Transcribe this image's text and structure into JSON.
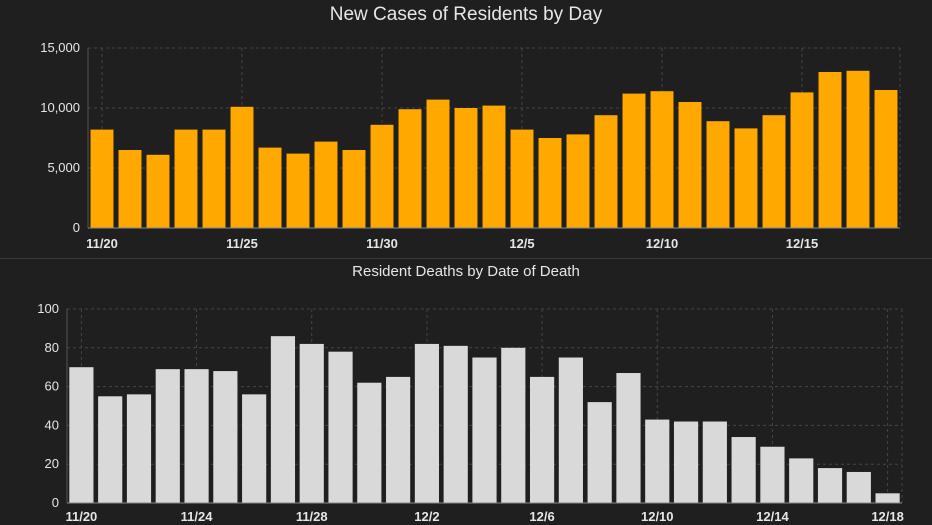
{
  "chart_data": [
    {
      "type": "bar",
      "title": "New Cases of Residents by Day",
      "xlabel": "",
      "ylabel": "",
      "color": "#ffa800",
      "ylim": [
        0,
        15000
      ],
      "yticks": [
        0,
        5000,
        10000,
        15000
      ],
      "ytick_labels": [
        "0",
        "5,000",
        "10,000",
        "15,000"
      ],
      "xtick_labels": [
        {
          "index": 0,
          "label": "11/20"
        },
        {
          "index": 5,
          "label": "11/25"
        },
        {
          "index": 10,
          "label": "11/30"
        },
        {
          "index": 15,
          "label": "12/5"
        },
        {
          "index": 20,
          "label": "12/10"
        },
        {
          "index": 25,
          "label": "12/15"
        }
      ],
      "grid": true,
      "categories": [
        "11/20",
        "11/21",
        "11/22",
        "11/23",
        "11/24",
        "11/25",
        "11/26",
        "11/27",
        "11/28",
        "11/29",
        "11/30",
        "12/1",
        "12/2",
        "12/3",
        "12/4",
        "12/5",
        "12/6",
        "12/7",
        "12/8",
        "12/9",
        "12/10",
        "12/11",
        "12/12",
        "12/13",
        "12/14",
        "12/15",
        "12/16",
        "12/17",
        "12/18"
      ],
      "values": [
        8200,
        6500,
        6100,
        8200,
        8200,
        10100,
        6700,
        6200,
        7200,
        6500,
        8600,
        9900,
        10700,
        10000,
        10200,
        8200,
        7500,
        7800,
        9400,
        11200,
        11400,
        10500,
        8900,
        8300,
        9400,
        11300,
        13000,
        13100,
        11500
      ]
    },
    {
      "type": "bar",
      "title": "Resident Deaths by Date of Death",
      "xlabel": "",
      "ylabel": "",
      "color": "#d9d9d9",
      "ylim": [
        0,
        100
      ],
      "yticks": [
        0,
        20,
        40,
        60,
        80,
        100
      ],
      "ytick_labels": [
        "0",
        "20",
        "40",
        "60",
        "80",
        "100"
      ],
      "xtick_labels": [
        {
          "index": 0,
          "label": "11/20"
        },
        {
          "index": 4,
          "label": "11/24"
        },
        {
          "index": 8,
          "label": "11/28"
        },
        {
          "index": 12,
          "label": "12/2"
        },
        {
          "index": 16,
          "label": "12/6"
        },
        {
          "index": 20,
          "label": "12/10"
        },
        {
          "index": 24,
          "label": "12/14"
        },
        {
          "index": 28,
          "label": "12/18"
        }
      ],
      "grid": true,
      "categories": [
        "11/20",
        "11/21",
        "11/22",
        "11/23",
        "11/24",
        "11/25",
        "11/26",
        "11/27",
        "11/28",
        "11/29",
        "11/30",
        "12/1",
        "12/2",
        "12/3",
        "12/4",
        "12/5",
        "12/6",
        "12/7",
        "12/8",
        "12/9",
        "12/10",
        "12/11",
        "12/12",
        "12/13",
        "12/14",
        "12/15",
        "12/16",
        "12/17",
        "12/18"
      ],
      "values": [
        70,
        55,
        56,
        69,
        69,
        68,
        56,
        86,
        82,
        78,
        62,
        65,
        82,
        81,
        75,
        80,
        65,
        75,
        52,
        67,
        43,
        42,
        42,
        34,
        29,
        23,
        18,
        16,
        5
      ]
    }
  ]
}
